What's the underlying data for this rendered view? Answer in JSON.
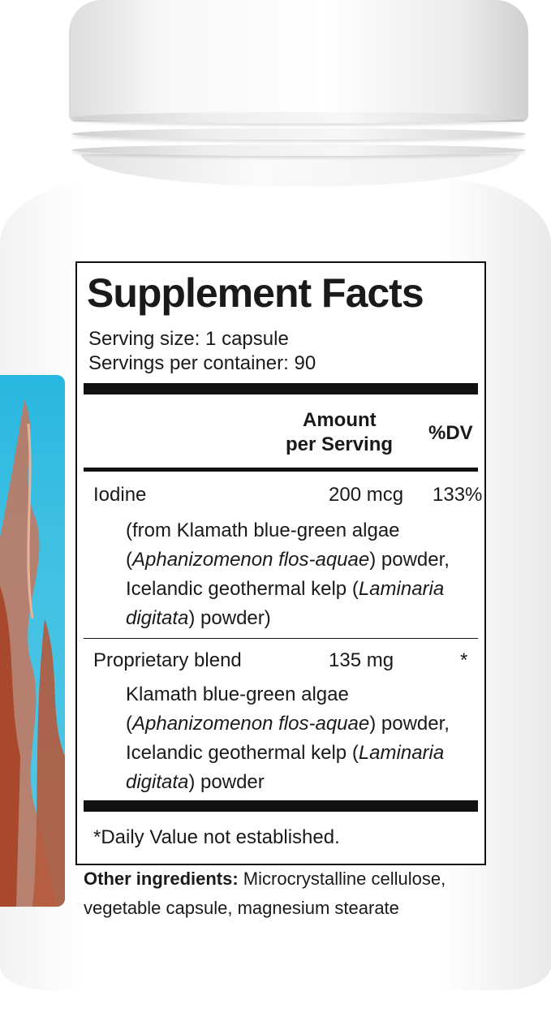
{
  "facts": {
    "title": "Supplement Facts",
    "serving_size": "Serving size: 1 capsule",
    "servings_per_container": "Servings per container: 90",
    "header_amount_1": "Amount",
    "header_amount_2": "per Serving",
    "header_dv": "%DV",
    "rows": [
      {
        "name": "Iodine",
        "amount": "200 mcg",
        "dv": "133%",
        "source_1": "(from Klamath blue-green algae",
        "source_2_italic": "Aphanizomenon flos-aquae",
        "source_2_rest": ") powder,",
        "source_3": "Icelandic geothermal kelp (",
        "source_3_italic": "Laminaria",
        "source_4_italic": "digitata",
        "source_4_rest": ") powder)"
      },
      {
        "name": "Proprietary blend",
        "amount": "135 mg",
        "dv": "*",
        "source_1": "Klamath blue-green algae",
        "source_2_italic": "Aphanizomenon flos-aquae",
        "source_2_rest": ") powder,",
        "source_3": "Icelandic geothermal kelp (",
        "source_3_italic": "Laminaria",
        "source_4_italic": "digitata",
        "source_4_rest": ") powder"
      }
    ],
    "footnote": "*Daily Value not established."
  },
  "other_ingredients": {
    "label": "Other ingredients:",
    "text_1": " Microcrystalline cellulose,",
    "text_2": "vegetable capsule, magnesium stearate"
  }
}
